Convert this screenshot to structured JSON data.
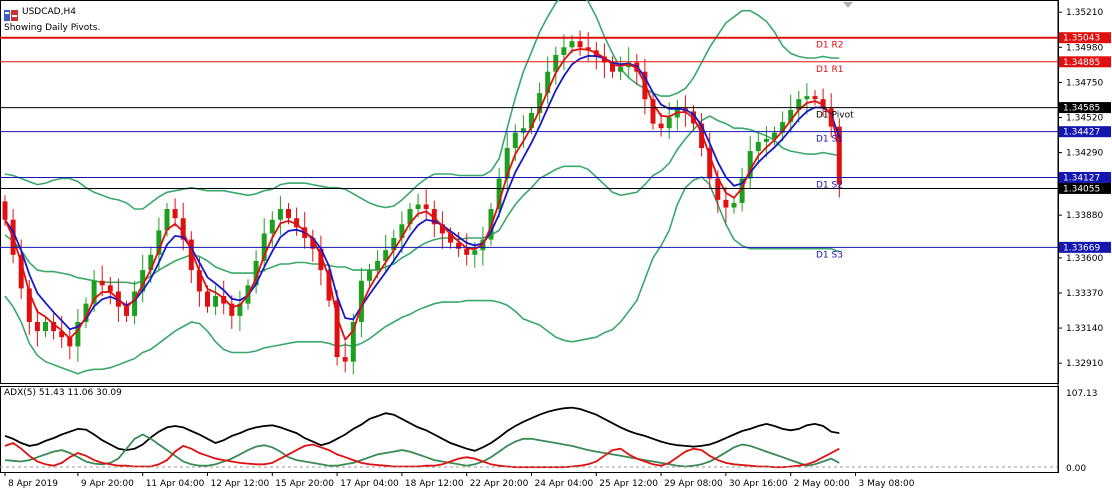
{
  "header": {
    "symbol_label": "USDCAD,H4",
    "subtitle": "Showing Daily Pivots.",
    "indicator_label": "ADX(5) 51.43 11.06 30.09"
  },
  "colors": {
    "bg": "#ffffff",
    "bull": "#1e9e1e",
    "bear": "#e01010",
    "bb": "#3aa86b",
    "ma_fast": "#e01010",
    "ma_slow": "#1818c8",
    "pivot_red": "#e01010",
    "pivot_blue": "#1515b0",
    "pivot_black": "#000000",
    "adx_main": "#000000",
    "adx_plus": "#3a8a55",
    "adx_minus": "#e01010"
  },
  "chart_data": [
    {
      "type": "candlestick",
      "title": "USDCAD,H4",
      "ylim": [
        1.3278,
        1.3529
      ],
      "y_ticks": [
        "1.35210",
        "1.34980",
        "1.34750",
        "1.34520",
        "1.34290",
        "1.33880",
        "1.33600",
        "1.33370",
        "1.33140",
        "1.32910"
      ],
      "y_tick_values": [
        1.3521,
        1.3498,
        1.3475,
        1.3452,
        1.3429,
        1.3388,
        1.336,
        1.3337,
        1.3314,
        1.3291
      ],
      "x_ticks": [
        "8 Apr 2019",
        "9 Apr 20:00",
        "11 Apr 04:00",
        "12 Apr 12:00",
        "15 Apr 20:00",
        "17 Apr 04:00",
        "18 Apr 12:00",
        "22 Apr 20:00",
        "24 Apr 04:00",
        "25 Apr 12:00",
        "29 Apr 08:00",
        "30 Apr 16:00",
        "2 May 00:00",
        "3 May 08:00"
      ],
      "x_tick_index": [
        0,
        9,
        17,
        25,
        33,
        41,
        49,
        57,
        65,
        73,
        81,
        89,
        97,
        105
      ],
      "pivots": [
        {
          "name": "D1 R2",
          "value": 1.35043,
          "label": "1.35043",
          "color": "red"
        },
        {
          "name": "D1 R1",
          "value": 1.34885,
          "label": "1.34885",
          "color": "red"
        },
        {
          "name": "D1 Pivot",
          "value": 1.34585,
          "label": "1.34585",
          "color": "black"
        },
        {
          "name": "D1 S1",
          "value": 1.34427,
          "label": "1.34427",
          "color": "blue"
        },
        {
          "name": "D1 S2",
          "value": 1.34127,
          "label": "1.34127",
          "color": "blue"
        },
        {
          "name": "D1 S3",
          "value": 1.33669,
          "label": "1.33669",
          "color": "blue"
        }
      ],
      "current_price": {
        "value": 1.34055,
        "label": "1.34055"
      },
      "closes": [
        1.3385,
        1.3362,
        1.334,
        1.3318,
        1.3312,
        1.3318,
        1.3312,
        1.3308,
        1.3302,
        1.3318,
        1.333,
        1.3345,
        1.3342,
        1.3338,
        1.3328,
        1.3322,
        1.3338,
        1.3352,
        1.3362,
        1.3378,
        1.3392,
        1.3386,
        1.3372,
        1.3352,
        1.3338,
        1.3328,
        1.3335,
        1.333,
        1.3322,
        1.333,
        1.3342,
        1.3358,
        1.3376,
        1.3385,
        1.3392,
        1.3386,
        1.338,
        1.3373,
        1.3366,
        1.3352,
        1.3332,
        1.3295,
        1.3292,
        1.3318,
        1.3345,
        1.3352,
        1.3358,
        1.3365,
        1.3373,
        1.3382,
        1.3392,
        1.3395,
        1.3392,
        1.3382,
        1.3376,
        1.337,
        1.3366,
        1.3362,
        1.3365,
        1.3372,
        1.3392,
        1.3412,
        1.3432,
        1.3442,
        1.3445,
        1.3455,
        1.3468,
        1.3482,
        1.3493,
        1.3498,
        1.3502,
        1.3498,
        1.3496,
        1.3492,
        1.3488,
        1.3482,
        1.3485,
        1.3488,
        1.3482,
        1.3464,
        1.3448,
        1.3445,
        1.3452,
        1.3458,
        1.3456,
        1.3448,
        1.3432,
        1.3412,
        1.3398,
        1.3393,
        1.3396,
        1.3412,
        1.343,
        1.3436,
        1.3438,
        1.3442,
        1.3449,
        1.3457,
        1.3464,
        1.3466,
        1.3464,
        1.3458,
        1.3446,
        1.3408
      ],
      "bb_upper": [
        1.3415,
        1.3414,
        1.3412,
        1.341,
        1.3408,
        1.3409,
        1.3411,
        1.3412,
        1.3412,
        1.341,
        1.3406,
        1.3403,
        1.3401,
        1.3399,
        1.3398,
        1.3396,
        1.3392,
        1.3392,
        1.3396,
        1.34,
        1.3403,
        1.3404,
        1.3405,
        1.3406,
        1.3405,
        1.3404,
        1.3404,
        1.3404,
        1.3403,
        1.3402,
        1.3401,
        1.3402,
        1.3404,
        1.3405,
        1.3408,
        1.3409,
        1.3409,
        1.3409,
        1.3408,
        1.3407,
        1.3406,
        1.3406,
        1.3405,
        1.3402,
        1.3399,
        1.3396,
        1.3394,
        1.3393,
        1.3394,
        1.3398,
        1.3403,
        1.3408,
        1.3412,
        1.3415,
        1.3415,
        1.3415,
        1.3414,
        1.3414,
        1.3414,
        1.3414,
        1.3417,
        1.3425,
        1.3445,
        1.3465,
        1.3482,
        1.3495,
        1.3508,
        1.3518,
        1.3527,
        1.3533,
        1.3536,
        1.3534,
        1.3528,
        1.3518,
        1.3505,
        1.3494,
        1.3484,
        1.3478,
        1.3474,
        1.3471,
        1.3468,
        1.3466,
        1.3466,
        1.3468,
        1.3471,
        1.3478,
        1.3488,
        1.3498,
        1.3506,
        1.3514,
        1.3518,
        1.3522,
        1.3522,
        1.3519,
        1.3515,
        1.3508,
        1.3499,
        1.3494,
        1.3492,
        1.3491,
        1.3491,
        1.3492,
        1.3491,
        1.3491
      ],
      "bb_lower": [
        1.3335,
        1.3328,
        1.3318,
        1.3304,
        1.3296,
        1.3292,
        1.329,
        1.3288,
        1.3286,
        1.3284,
        1.3286,
        1.3287,
        1.3287,
        1.3288,
        1.329,
        1.3292,
        1.3294,
        1.3298,
        1.33,
        1.3304,
        1.3308,
        1.3312,
        1.3315,
        1.3318,
        1.3317,
        1.3312,
        1.3305,
        1.33,
        1.3298,
        1.3298,
        1.3298,
        1.3299,
        1.3301,
        1.3302,
        1.3303,
        1.3304,
        1.3305,
        1.3305,
        1.3305,
        1.3305,
        1.3304,
        1.3302,
        1.3303,
        1.3302,
        1.3304,
        1.3307,
        1.3311,
        1.3315,
        1.3318,
        1.3321,
        1.3323,
        1.3326,
        1.3328,
        1.333,
        1.3331,
        1.3331,
        1.3331,
        1.3332,
        1.3332,
        1.3332,
        1.3332,
        1.3331,
        1.3329,
        1.3325,
        1.332,
        1.3318,
        1.3316,
        1.3312,
        1.3308,
        1.3306,
        1.3305,
        1.3306,
        1.3307,
        1.3308,
        1.3311,
        1.3313,
        1.3318,
        1.3325,
        1.3332,
        1.3346,
        1.336,
        1.3368,
        1.3378,
        1.3395,
        1.3406,
        1.3411,
        1.3413,
        1.3408,
        1.3395,
        1.3382,
        1.3372,
        1.3368,
        1.3366,
        1.3366,
        1.3366,
        1.3366,
        1.3366,
        1.3366,
        1.3366,
        1.3366,
        1.3366,
        1.3366,
        1.3366,
        1.3364
      ],
      "bb_mid": [
        1.3375,
        1.3371,
        1.3365,
        1.3357,
        1.3352,
        1.3351,
        1.3351,
        1.335,
        1.3349,
        1.3347,
        1.3346,
        1.3345,
        1.3344,
        1.3344,
        1.3344,
        1.3344,
        1.3343,
        1.3345,
        1.3348,
        1.3352,
        1.3355,
        1.3358,
        1.336,
        1.3362,
        1.3361,
        1.3358,
        1.3354,
        1.3352,
        1.335,
        1.335,
        1.335,
        1.335,
        1.3352,
        1.3354,
        1.3356,
        1.3356,
        1.3357,
        1.3357,
        1.3356,
        1.3356,
        1.3355,
        1.3354,
        1.3354,
        1.3352,
        1.3352,
        1.3352,
        1.3352,
        1.3354,
        1.3356,
        1.336,
        1.3363,
        1.3367,
        1.337,
        1.3372,
        1.3373,
        1.3373,
        1.3372,
        1.3373,
        1.3373,
        1.3373,
        1.3375,
        1.3378,
        1.3387,
        1.3395,
        1.3401,
        1.3406,
        1.3412,
        1.3415,
        1.3418,
        1.342,
        1.342,
        1.342,
        1.3418,
        1.3413,
        1.3408,
        1.3403,
        1.3401,
        1.3402,
        1.3403,
        1.3408,
        1.3414,
        1.3417,
        1.3422,
        1.3431,
        1.3438,
        1.3444,
        1.345,
        1.3453,
        1.345,
        1.3448,
        1.3445,
        1.3445,
        1.3444,
        1.3442,
        1.344,
        1.3437,
        1.3432,
        1.343,
        1.3429,
        1.3428,
        1.3428,
        1.3429,
        1.3428,
        1.3427
      ]
    },
    {
      "type": "line",
      "title": "ADX(5) 51.43 11.06 30.09",
      "ylim": [
        0.0,
        107.13
      ],
      "y_ticks": [
        "107.13",
        "0.00"
      ],
      "series": [
        {
          "name": "ADX",
          "values": [
            48,
            44,
            38,
            34,
            36,
            41,
            45,
            50,
            54,
            58,
            57,
            50,
            42,
            36,
            30,
            28,
            30,
            36,
            46,
            54,
            60,
            62,
            60,
            55,
            50,
            44,
            38,
            42,
            48,
            52,
            57,
            60,
            62,
            63,
            60,
            56,
            52,
            45,
            40,
            35,
            38,
            44,
            50,
            58,
            64,
            72,
            76,
            80,
            78,
            72,
            66,
            60,
            56,
            50,
            44,
            38,
            34,
            30,
            27,
            32,
            38,
            46,
            55,
            62,
            68,
            73,
            78,
            82,
            85,
            87,
            88,
            86,
            82,
            78,
            72,
            66,
            60,
            55,
            51,
            48,
            44,
            40,
            37,
            35,
            34,
            33,
            34,
            36,
            40,
            45,
            50,
            55,
            58,
            62,
            65,
            62,
            58,
            56,
            58,
            63,
            65,
            62,
            54,
            52
          ]
        },
        {
          "name": "+DI",
          "values": [
            14,
            13,
            12,
            14,
            18,
            22,
            26,
            28,
            24,
            18,
            12,
            9,
            8,
            10,
            16,
            30,
            44,
            50,
            44,
            36,
            28,
            20,
            12,
            8,
            6,
            6,
            8,
            12,
            16,
            22,
            28,
            33,
            35,
            32,
            26,
            18,
            14,
            12,
            10,
            8,
            6,
            6,
            8,
            10,
            14,
            18,
            22,
            24,
            26,
            28,
            26,
            22,
            18,
            14,
            12,
            10,
            8,
            6,
            8,
            12,
            18,
            26,
            34,
            40,
            44,
            44,
            42,
            40,
            38,
            36,
            34,
            31,
            28,
            26,
            24,
            22,
            20,
            18,
            16,
            14,
            12,
            10,
            8,
            6,
            5,
            6,
            8,
            12,
            18,
            25,
            32,
            36,
            34,
            30,
            26,
            22,
            18,
            14,
            10,
            6,
            8,
            12,
            16,
            10
          ]
        },
        {
          "name": "-DI",
          "values": [
            34,
            38,
            30,
            20,
            12,
            8,
            6,
            10,
            18,
            24,
            20,
            14,
            10,
            8,
            6,
            6,
            5,
            5,
            5,
            8,
            14,
            26,
            34,
            30,
            24,
            20,
            16,
            14,
            12,
            10,
            9,
            8,
            8,
            10,
            16,
            22,
            28,
            34,
            36,
            32,
            28,
            22,
            18,
            14,
            10,
            8,
            7,
            6,
            5,
            5,
            5,
            5,
            6,
            6,
            8,
            12,
            16,
            18,
            16,
            12,
            8,
            6,
            5,
            4,
            4,
            4,
            4,
            4,
            4,
            4,
            5,
            6,
            8,
            12,
            20,
            28,
            30,
            22,
            16,
            12,
            8,
            6,
            10,
            18,
            26,
            30,
            28,
            20,
            14,
            10,
            8,
            7,
            6,
            5,
            5,
            4,
            4,
            5,
            6,
            8,
            12,
            18,
            24,
            30
          ]
        }
      ]
    }
  ]
}
